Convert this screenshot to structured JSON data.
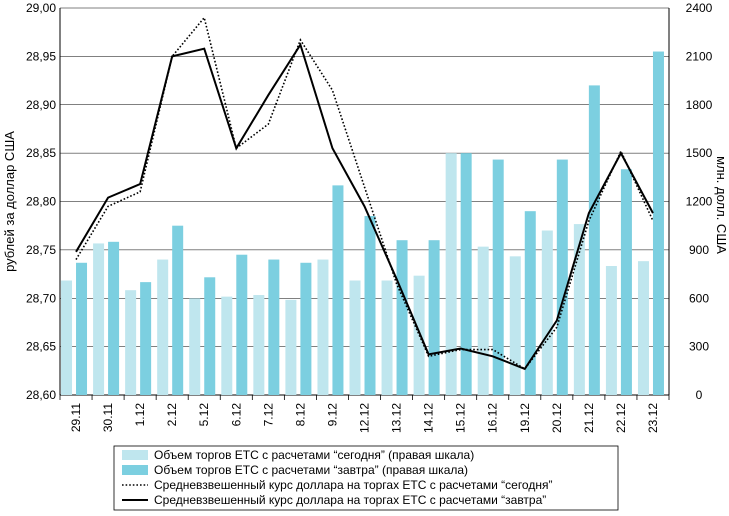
{
  "chart_data": {
    "type": "bar",
    "categories": [
      "29.11",
      "30.11",
      "1.12",
      "2.12",
      "5.12",
      "6.12",
      "7.12",
      "8.12",
      "9.12",
      "12.12",
      "13.12",
      "14.12",
      "15.12",
      "16.12",
      "19.12",
      "20.12",
      "21.12",
      "22.12",
      "23.12"
    ],
    "series": [
      {
        "name": "Объем торгов ЕТС с расчетами “сегодня” (правая шкала)",
        "kind": "bar",
        "axis": "right",
        "color": "#bfe6ee",
        "values": [
          710,
          940,
          650,
          840,
          600,
          610,
          620,
          590,
          840,
          710,
          710,
          740,
          1500,
          920,
          860,
          1020,
          1060,
          800,
          830
        ]
      },
      {
        "name": "Объем торгов ЕТС с расчетами “завтра” (правая шкала)",
        "kind": "bar",
        "axis": "right",
        "color": "#7ccfe0",
        "values": [
          820,
          950,
          700,
          1050,
          730,
          870,
          840,
          820,
          1300,
          1110,
          960,
          960,
          1500,
          1460,
          1140,
          1460,
          1920,
          1400,
          2130
        ]
      },
      {
        "name": "Средневзвешенный курс доллара на торгах ЕТС с расчетами “сегодня”",
        "kind": "line",
        "axis": "left",
        "style": "dotted",
        "color": "#000000",
        "values": [
          28.74,
          28.795,
          28.81,
          28.95,
          28.99,
          28.855,
          28.88,
          28.967,
          28.915,
          28.815,
          28.715,
          28.64,
          28.647,
          28.647,
          28.627,
          28.67,
          28.78,
          28.852,
          28.78
        ]
      },
      {
        "name": "Средневзвешенный курс доллара на торгах ЕТС с расчетами “завтра”",
        "kind": "line",
        "axis": "left",
        "style": "solid",
        "color": "#000000",
        "values": [
          28.748,
          28.804,
          28.818,
          28.95,
          28.958,
          28.855,
          28.91,
          28.962,
          28.855,
          28.795,
          28.72,
          28.642,
          28.648,
          28.64,
          28.627,
          28.677,
          28.788,
          28.85,
          28.788
        ]
      }
    ],
    "y_left": {
      "label": "рублей за доллар США",
      "ylim": [
        28.6,
        29.0
      ],
      "ticks": [
        "28,60",
        "28,65",
        "28,70",
        "28,75",
        "28,80",
        "28,85",
        "28,90",
        "28,95",
        "29,00"
      ]
    },
    "y_right": {
      "label": "млн. долл. США",
      "ylim": [
        0,
        2400
      ],
      "ticks": [
        "0",
        "300",
        "600",
        "900",
        "1200",
        "1500",
        "1800",
        "2100",
        "2400"
      ]
    },
    "grid": "horizontal",
    "legend_placement": "bottom"
  }
}
